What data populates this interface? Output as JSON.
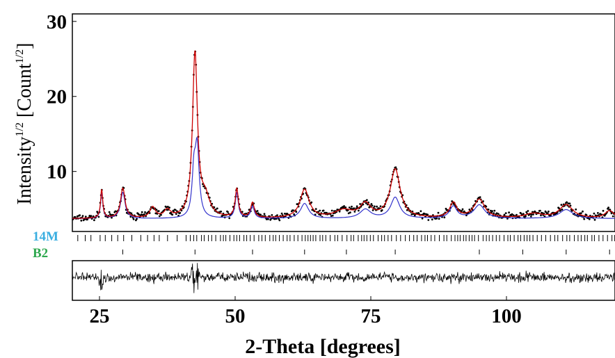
{
  "chart_data": {
    "type": "line",
    "title": "",
    "xlabel": "2-Theta [degrees]",
    "ylabel_main": "Intensity",
    "ylabel_sup1": "1/2",
    "ylabel_mid": " [Count",
    "ylabel_sup2": "1/2",
    "ylabel_end": "]",
    "xlim": [
      20,
      120
    ],
    "ylim": [
      2,
      31
    ],
    "x_ticks": [
      25,
      50,
      75,
      100
    ],
    "y_ticks": [
      10,
      20,
      30
    ],
    "grid": false,
    "background": 3.7,
    "series": [
      {
        "role": "observed",
        "color": "#000000",
        "peaks": [
          [
            25.4,
            3.8,
            0.25
          ],
          [
            29.3,
            4.0,
            0.5
          ],
          [
            34.8,
            1.4,
            0.6
          ],
          [
            37.5,
            1.0,
            0.7
          ],
          [
            42.6,
            21.8,
            0.55
          ],
          [
            44.5,
            2.5,
            1.0
          ],
          [
            50.3,
            3.8,
            0.35
          ],
          [
            53.2,
            2.0,
            0.4
          ],
          [
            62.8,
            3.8,
            1.0
          ],
          [
            70.0,
            1.0,
            2.0
          ],
          [
            74.0,
            1.8,
            1.2
          ],
          [
            79.5,
            6.5,
            1.1
          ],
          [
            90.2,
            2.0,
            0.8
          ],
          [
            95.0,
            2.5,
            1.2
          ],
          [
            105.0,
            0.6,
            2.0
          ],
          [
            111.0,
            1.8,
            1.5
          ],
          [
            119.0,
            1.0,
            1.0
          ]
        ]
      },
      {
        "role": "calculated",
        "color": "#cc0000"
      },
      {
        "role": "phase 14M contribution",
        "color": "#3333cc",
        "peaks": [
          [
            25.4,
            3.4,
            0.25
          ],
          [
            29.3,
            3.5,
            0.5
          ],
          [
            42.4,
            5.5,
            0.4
          ],
          [
            43.0,
            9.0,
            0.45
          ],
          [
            50.3,
            3.4,
            0.35
          ],
          [
            53.2,
            1.6,
            0.4
          ],
          [
            62.8,
            2.0,
            0.9
          ],
          [
            74.0,
            1.2,
            1.2
          ],
          [
            79.5,
            2.8,
            1.0
          ],
          [
            90.2,
            1.6,
            0.8
          ],
          [
            95.0,
            1.8,
            1.2
          ],
          [
            111.0,
            1.2,
            1.5
          ]
        ]
      },
      {
        "role": "difference",
        "color": "#000000"
      }
    ],
    "phases": [
      {
        "name": "14M",
        "color": "#3aaee0"
      },
      {
        "name": "B2",
        "color": "#2fa84f",
        "reflections": [
          29.3,
          42.6,
          53.2,
          62.8,
          70.5,
          79.5,
          95.0,
          103.0,
          111.0,
          119.0
        ]
      }
    ]
  }
}
